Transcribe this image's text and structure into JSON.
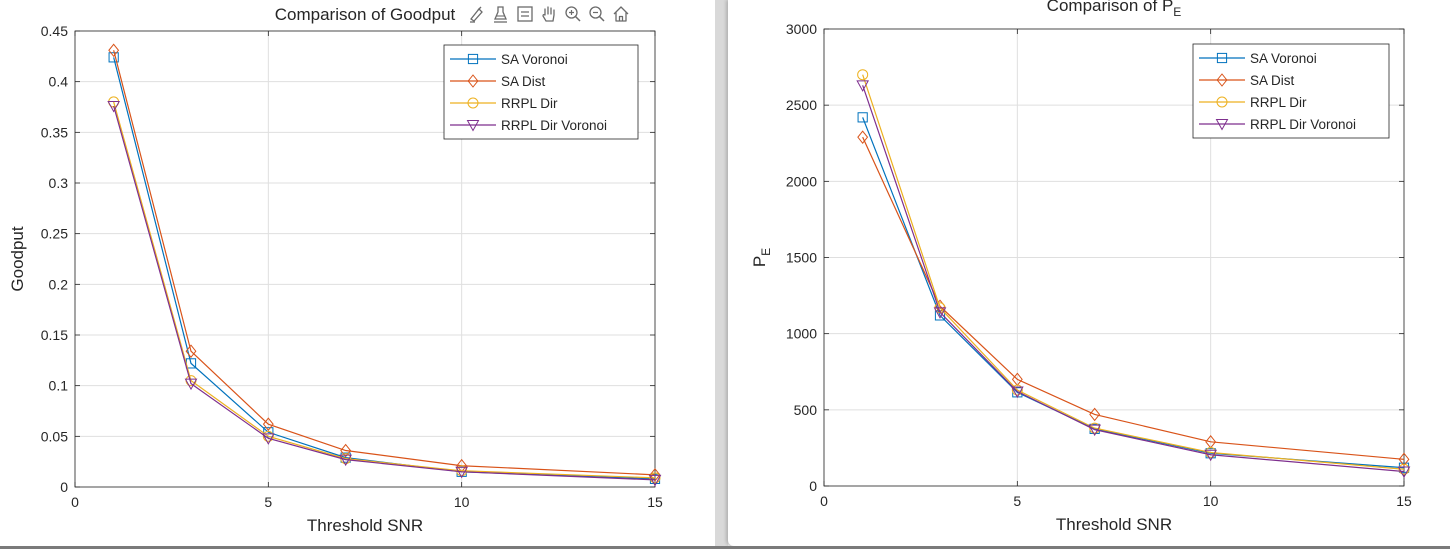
{
  "figures": [
    {
      "chart_data": {
        "type": "line",
        "title": "Comparison of Goodput",
        "xlabel": "Threshold SNR",
        "ylabel": "Goodput",
        "xlim": [
          0,
          15
        ],
        "ylim": [
          0,
          0.45
        ],
        "xticks": [
          0,
          5,
          10,
          15
        ],
        "yticks": [
          0,
          0.05,
          0.1,
          0.15,
          0.2,
          0.25,
          0.3,
          0.35,
          0.4,
          0.45
        ],
        "grid": true,
        "legend_position": "top-right",
        "x": [
          1,
          3,
          5,
          7,
          10,
          15
        ],
        "series": [
          {
            "name": "SA Voronoi",
            "color": "#0072BD",
            "marker": "square",
            "values": [
              0.424,
              0.122,
              0.054,
              0.029,
              0.015,
              0.008
            ]
          },
          {
            "name": "SA Dist",
            "color": "#D95319",
            "marker": "diamond",
            "values": [
              0.431,
              0.134,
              0.062,
              0.036,
              0.021,
              0.012
            ]
          },
          {
            "name": "RRPL Dir",
            "color": "#EDB120",
            "marker": "circle",
            "values": [
              0.38,
              0.105,
              0.05,
              0.028,
              0.016,
              0.009
            ]
          },
          {
            "name": "RRPL Dir Voronoi",
            "color": "#7E2F8E",
            "marker": "triangle-down",
            "values": [
              0.376,
              0.102,
              0.048,
              0.027,
              0.015,
              0.007
            ]
          }
        ]
      }
    },
    {
      "chart_data": {
        "type": "line",
        "title": "Comparison of P",
        "title_subscript": "E",
        "xlabel": "Threshold SNR",
        "ylabel": "P",
        "ylabel_subscript": "E",
        "xlim": [
          0,
          15
        ],
        "ylim": [
          0,
          3000
        ],
        "xticks": [
          0,
          5,
          10,
          15
        ],
        "yticks": [
          0,
          500,
          1000,
          1500,
          2000,
          2500,
          3000
        ],
        "grid": true,
        "legend_position": "top-right",
        "x": [
          1,
          3,
          5,
          7,
          10,
          15
        ],
        "series": [
          {
            "name": "SA Voronoi",
            "color": "#0072BD",
            "marker": "square",
            "values": [
              2420,
              1120,
              615,
              375,
              215,
              120
            ]
          },
          {
            "name": "SA Dist",
            "color": "#D95319",
            "marker": "diamond",
            "values": [
              2290,
              1180,
              700,
              470,
              290,
              175
            ]
          },
          {
            "name": "RRPL Dir",
            "color": "#EDB120",
            "marker": "circle",
            "values": [
              2700,
              1170,
              630,
              380,
              220,
              110
            ]
          },
          {
            "name": "RRPL Dir Voronoi",
            "color": "#7E2F8E",
            "marker": "triangle-down",
            "values": [
              2630,
              1140,
              620,
              370,
              205,
              95
            ]
          }
        ]
      }
    }
  ],
  "toolbar": {
    "icons": [
      "brush-icon",
      "data-tips-icon",
      "legend-icon",
      "pan-hand-icon",
      "zoom-in-icon",
      "zoom-out-icon",
      "home-icon"
    ]
  }
}
